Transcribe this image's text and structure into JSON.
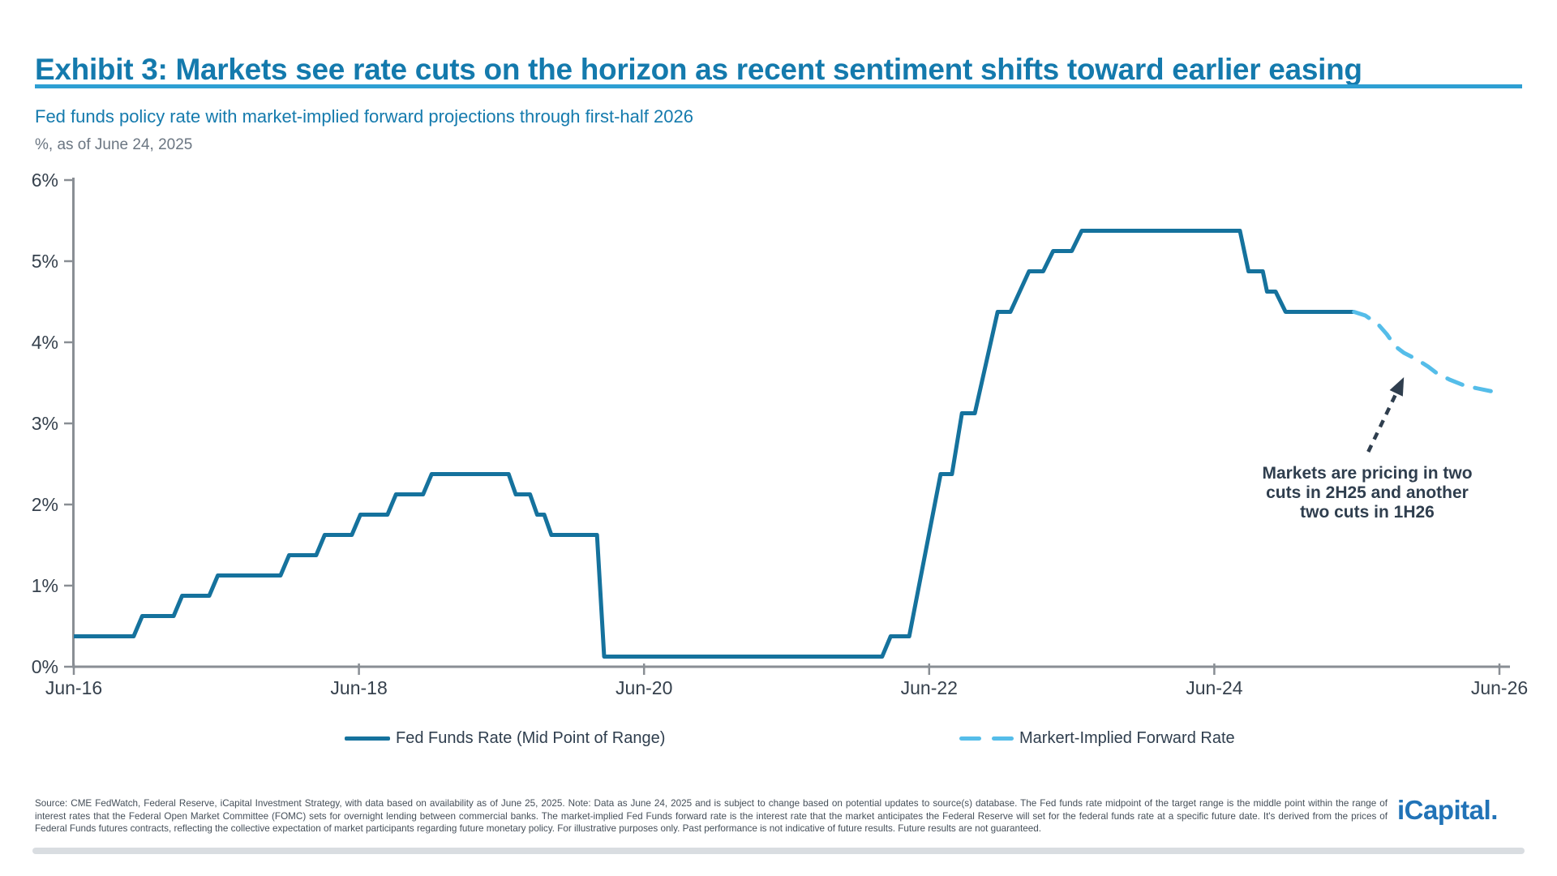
{
  "header": {
    "title": "Exhibit 3: Markets see rate cuts on the horizon as recent sentiment shifts toward earlier easing",
    "subtitle": "Fed funds policy rate with market-implied forward projections through first-half 2026",
    "caption": "%, as of June 24, 2025"
  },
  "chart_data": {
    "type": "line",
    "title": "Fed funds policy rate with market-implied forward projections through first-half 2026",
    "unit": "%",
    "xlabel": "",
    "ylabel": "%",
    "grid": false,
    "legend_position": "bottom",
    "x_axis": {
      "range": [
        2016.42,
        2026.58
      ],
      "ticks": [
        {
          "label": "Jun-16",
          "t": 2016.5
        },
        {
          "label": "Jun-18",
          "t": 2018.5
        },
        {
          "label": "Jun-20",
          "t": 2020.5
        },
        {
          "label": "Jun-22",
          "t": 2022.5
        },
        {
          "label": "Jun-24",
          "t": 2024.5
        },
        {
          "label": "Jun-26",
          "t": 2026.5
        }
      ]
    },
    "y_axis": {
      "range": [
        0,
        6
      ],
      "ticks": [
        {
          "label": "0%",
          "v": 0
        },
        {
          "label": "1%",
          "v": 1
        },
        {
          "label": "2%",
          "v": 2
        },
        {
          "label": "3%",
          "v": 3
        },
        {
          "label": "4%",
          "v": 4
        },
        {
          "label": "5%",
          "v": 5
        },
        {
          "label": "6%",
          "v": 6
        }
      ]
    },
    "series": [
      {
        "name": "Fed Funds Rate (Mid Point of Range)",
        "style": "solid",
        "color": "#15729D",
        "points": [
          [
            2016.5,
            0.375
          ],
          [
            2016.92,
            0.375
          ],
          [
            2016.98,
            0.625
          ],
          [
            2017.2,
            0.625
          ],
          [
            2017.26,
            0.875
          ],
          [
            2017.45,
            0.875
          ],
          [
            2017.51,
            1.125
          ],
          [
            2017.95,
            1.125
          ],
          [
            2018.01,
            1.375
          ],
          [
            2018.2,
            1.375
          ],
          [
            2018.26,
            1.625
          ],
          [
            2018.45,
            1.625
          ],
          [
            2018.51,
            1.875
          ],
          [
            2018.7,
            1.875
          ],
          [
            2018.76,
            2.125
          ],
          [
            2018.95,
            2.125
          ],
          [
            2019.01,
            2.375
          ],
          [
            2019.55,
            2.375
          ],
          [
            2019.6,
            2.125
          ],
          [
            2019.7,
            2.125
          ],
          [
            2019.75,
            1.875
          ],
          [
            2019.8,
            1.875
          ],
          [
            2019.85,
            1.625
          ],
          [
            2020.17,
            1.625
          ],
          [
            2020.22,
            0.125
          ],
          [
            2022.17,
            0.125
          ],
          [
            2022.23,
            0.375
          ],
          [
            2022.36,
            0.375
          ],
          [
            2022.58,
            2.375
          ],
          [
            2022.66,
            2.375
          ],
          [
            2022.73,
            3.125
          ],
          [
            2022.82,
            3.125
          ],
          [
            2022.98,
            4.375
          ],
          [
            2023.07,
            4.375
          ],
          [
            2023.2,
            4.875
          ],
          [
            2023.3,
            4.875
          ],
          [
            2023.37,
            5.125
          ],
          [
            2023.5,
            5.125
          ],
          [
            2023.57,
            5.375
          ],
          [
            2024.68,
            5.375
          ],
          [
            2024.74,
            4.875
          ],
          [
            2024.84,
            4.875
          ],
          [
            2024.87,
            4.625
          ],
          [
            2024.93,
            4.625
          ],
          [
            2025.0,
            4.375
          ],
          [
            2025.48,
            4.375
          ]
        ]
      },
      {
        "name": "Markert-Implied Forward Rate",
        "style": "dashed",
        "color": "#55BDE9",
        "points": [
          [
            2025.48,
            4.375
          ],
          [
            2025.56,
            4.33
          ],
          [
            2025.65,
            4.22
          ],
          [
            2025.71,
            4.1
          ],
          [
            2025.77,
            3.95
          ],
          [
            2025.83,
            3.87
          ],
          [
            2025.92,
            3.79
          ],
          [
            2026.0,
            3.7
          ],
          [
            2026.06,
            3.62
          ],
          [
            2026.15,
            3.54
          ],
          [
            2026.25,
            3.47
          ],
          [
            2026.35,
            3.43
          ],
          [
            2026.46,
            3.39
          ]
        ]
      }
    ]
  },
  "annotation": {
    "text": "Markets are pricing in two\ncuts in 2H25 and another\ntwo cuts in 1H26",
    "arrow": {
      "from": {
        "t": 2025.58,
        "v": 2.65
      },
      "to": {
        "t": 2025.83,
        "v": 3.57
      }
    },
    "arrow_color": "#2F3E4E"
  },
  "legend": {
    "items": [
      {
        "label": "Fed Funds Rate (Mid Point of Range)",
        "style": "solid",
        "color": "#15729D"
      },
      {
        "label": "Markert-Implied Forward Rate",
        "style": "dashed",
        "color": "#55BDE9"
      }
    ]
  },
  "footer": {
    "note": "Source: CME FedWatch, Federal Reserve, iCapital Investment Strategy, with data based on availability as of June 25, 2025. Note: Data as June 24, 2025 and is subject to change based on potential updates to source(s) database. The Fed funds rate midpoint of the target range is the middle point within the range of interest rates that the Federal Open Market Committee (FOMC) sets for overnight lending between commercial banks. The market-implied Fed Funds forward rate is the interest rate that the market anticipates the Federal Reserve will set for the federal funds rate at a specific future date. It's derived from the prices of Federal Funds futures contracts, reflecting the collective expectation of market participants regarding future monetary policy. For illustrative purposes only. Past performance is not indicative of future results. Future results are not guaranteed.",
    "logo": "iCapital."
  },
  "colors": {
    "title_blue": "#147AAD",
    "rule_blue": "#2E9FD3",
    "solid_line": "#15729D",
    "dashed_line": "#55BDE9",
    "axis_gray": "#898E94",
    "text_dark": "#2F3E4E"
  }
}
